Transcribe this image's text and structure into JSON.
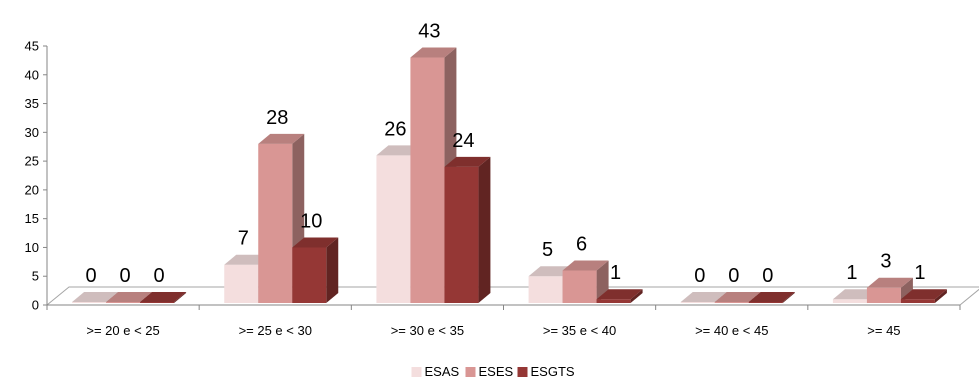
{
  "chart_data": {
    "type": "bar",
    "title": "",
    "xlabel": "",
    "ylabel": "",
    "ylim": [
      0,
      45
    ],
    "yticks": [
      "0",
      "5",
      "10",
      "15",
      "20",
      "25",
      "30",
      "35",
      "40",
      "45"
    ],
    "categories": [
      ">= 20 e < 25",
      ">= 25 e < 30",
      ">= 30 e < 35",
      ">= 35 e < 40",
      ">= 40 e < 45",
      ">= 45"
    ],
    "series": [
      {
        "name": "ESAS",
        "values": [
          0,
          7,
          26,
          5,
          0,
          1
        ],
        "color": "#f4dede"
      },
      {
        "name": "ESES",
        "values": [
          0,
          28,
          43,
          6,
          0,
          3
        ],
        "color": "#d99694"
      },
      {
        "name": "ESGTS",
        "values": [
          0,
          10,
          24,
          1,
          0,
          1
        ],
        "color": "#953735"
      }
    ],
    "data_labels": true,
    "grid": false,
    "legend": "bottom-center",
    "style": "3d-clustered-column"
  }
}
